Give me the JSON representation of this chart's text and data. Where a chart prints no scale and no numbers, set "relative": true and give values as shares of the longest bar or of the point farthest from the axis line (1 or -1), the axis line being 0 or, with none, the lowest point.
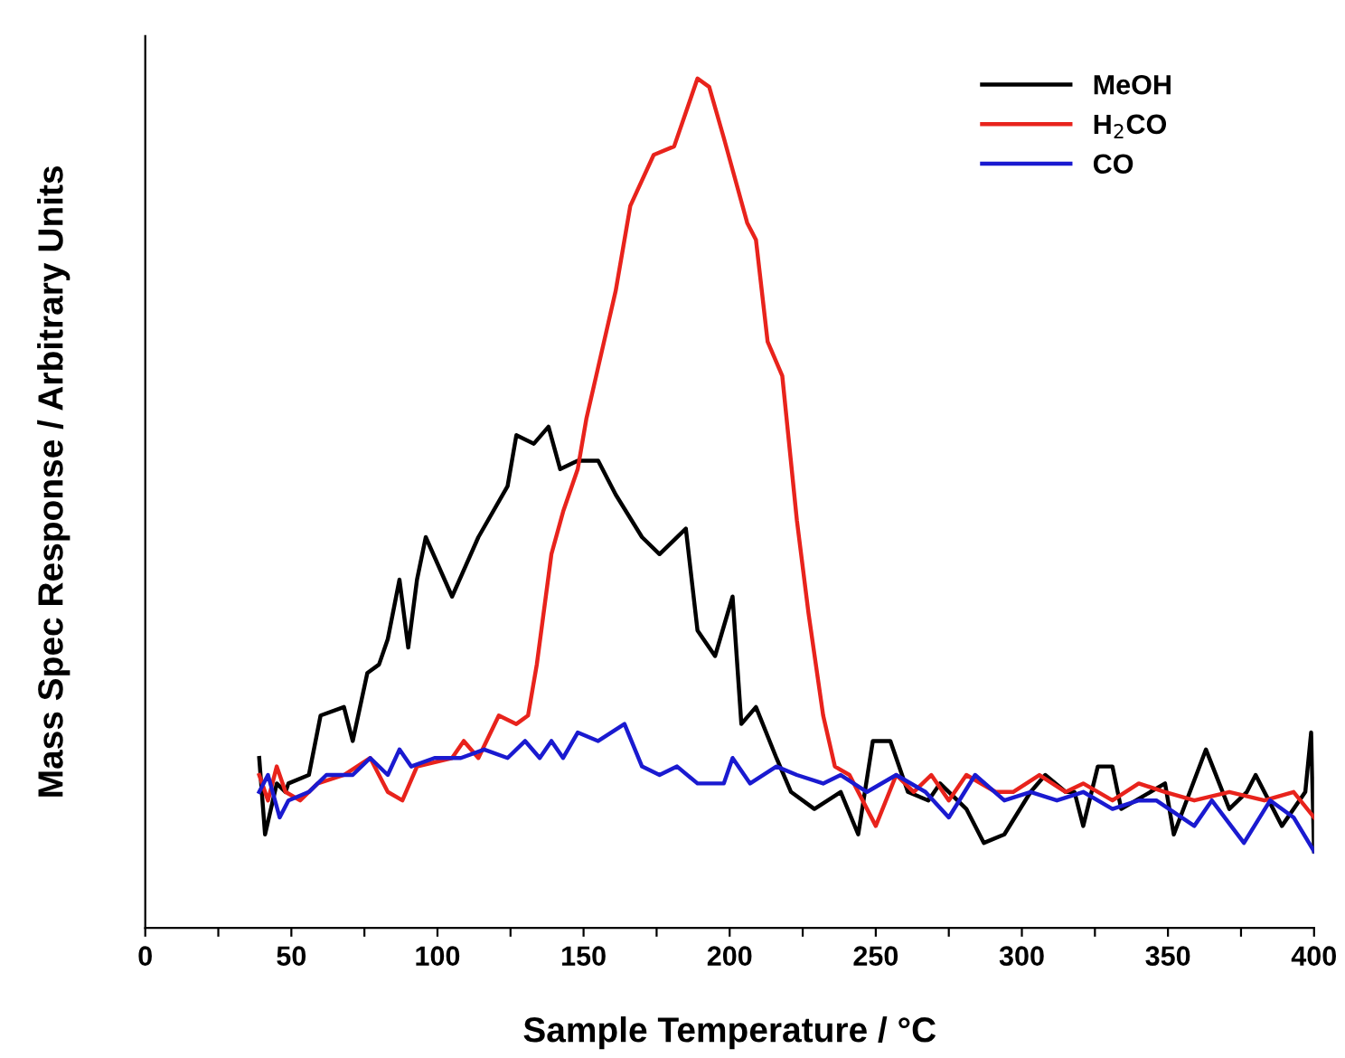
{
  "chart_data": {
    "type": "line",
    "relative": true,
    "xlabel": "Sample Temperature / °C",
    "ylabel": "Mass Spec Response / Arbitrary Units",
    "xlim": [
      0,
      400
    ],
    "xticks": [
      0,
      {
        "value": 25,
        "label": null
      },
      50,
      {
        "value": 75,
        "label": null
      },
      100,
      {
        "value": 125,
        "label": null
      },
      150,
      {
        "value": 175,
        "label": null
      },
      200,
      {
        "value": 225,
        "label": null
      },
      250,
      {
        "value": 275,
        "label": null
      },
      300,
      {
        "value": 325,
        "label": null
      },
      350,
      {
        "value": 375,
        "label": null
      },
      400
    ],
    "grid": false,
    "legend": "top right",
    "marker": "none",
    "line_style": "solid",
    "series": [
      {
        "name": "MeOH",
        "color": "#000000",
        "x": [
          39,
          41,
          45,
          48,
          49,
          56,
          60,
          68,
          71,
          76,
          80,
          83,
          87,
          90,
          93,
          96,
          105,
          114,
          124,
          127,
          133,
          138,
          142,
          148,
          155,
          161,
          170,
          176,
          185,
          189,
          195,
          201,
          204,
          209,
          216,
          221,
          229,
          238,
          244,
          249,
          255,
          261,
          268,
          272,
          281,
          287,
          294,
          303,
          308,
          315,
          318,
          321,
          326,
          331,
          334,
          349,
          352,
          363,
          371,
          377,
          380,
          389,
          397,
          399,
          400
        ],
        "values": [
          0.2,
          0.11,
          0.17,
          0.16,
          0.17,
          0.18,
          0.25,
          0.26,
          0.22,
          0.3,
          0.31,
          0.34,
          0.41,
          0.33,
          0.41,
          0.46,
          0.39,
          0.46,
          0.52,
          0.58,
          0.57,
          0.59,
          0.54,
          0.55,
          0.55,
          0.51,
          0.46,
          0.44,
          0.47,
          0.35,
          0.32,
          0.39,
          0.24,
          0.26,
          0.2,
          0.16,
          0.14,
          0.16,
          0.11,
          0.22,
          0.22,
          0.16,
          0.15,
          0.17,
          0.14,
          0.1,
          0.11,
          0.16,
          0.18,
          0.16,
          0.16,
          0.12,
          0.19,
          0.19,
          0.14,
          0.17,
          0.11,
          0.21,
          0.14,
          0.16,
          0.18,
          0.12,
          0.16,
          0.23,
          0.09
        ]
      },
      {
        "name": "H$_{2}$CO",
        "color": "#e8231c",
        "x": [
          39,
          42,
          45,
          48,
          53,
          59,
          68,
          77,
          83,
          88,
          93,
          105,
          109,
          114,
          121,
          127,
          131,
          134,
          139,
          143,
          148,
          151,
          155,
          161,
          166,
          174,
          181,
          189,
          193,
          198,
          206,
          209,
          213,
          218,
          223,
          227,
          232,
          236,
          241,
          250,
          257,
          263,
          269,
          275,
          281,
          291,
          297,
          306,
          315,
          321,
          331,
          340,
          349,
          359,
          371,
          383,
          393,
          400
        ],
        "values": [
          0.18,
          0.15,
          0.19,
          0.16,
          0.15,
          0.17,
          0.18,
          0.2,
          0.16,
          0.15,
          0.19,
          0.2,
          0.22,
          0.2,
          0.25,
          0.24,
          0.25,
          0.31,
          0.44,
          0.49,
          0.54,
          0.6,
          0.66,
          0.75,
          0.85,
          0.91,
          0.92,
          1.0,
          0.99,
          0.93,
          0.83,
          0.81,
          0.69,
          0.65,
          0.48,
          0.37,
          0.25,
          0.19,
          0.18,
          0.12,
          0.18,
          0.16,
          0.18,
          0.15,
          0.18,
          0.16,
          0.16,
          0.18,
          0.16,
          0.17,
          0.15,
          0.17,
          0.16,
          0.15,
          0.16,
          0.15,
          0.16,
          0.13
        ]
      },
      {
        "name": "CO",
        "color": "#1a1ad0",
        "x": [
          39,
          42,
          46,
          49,
          56,
          62,
          71,
          77,
          83,
          87,
          91,
          99,
          108,
          116,
          124,
          130,
          135,
          139,
          143,
          148,
          155,
          164,
          170,
          176,
          182,
          189,
          198,
          201,
          207,
          216,
          223,
          232,
          238,
          247,
          257,
          267,
          275,
          284,
          294,
          303,
          312,
          321,
          331,
          340,
          346,
          359,
          365,
          376,
          385,
          393,
          400
        ],
        "values": [
          0.16,
          0.18,
          0.13,
          0.15,
          0.16,
          0.18,
          0.18,
          0.2,
          0.18,
          0.21,
          0.19,
          0.2,
          0.2,
          0.21,
          0.2,
          0.22,
          0.2,
          0.22,
          0.2,
          0.23,
          0.22,
          0.24,
          0.19,
          0.18,
          0.19,
          0.17,
          0.17,
          0.2,
          0.17,
          0.19,
          0.18,
          0.17,
          0.18,
          0.16,
          0.18,
          0.16,
          0.13,
          0.18,
          0.15,
          0.16,
          0.15,
          0.16,
          0.14,
          0.15,
          0.15,
          0.12,
          0.15,
          0.1,
          0.15,
          0.13,
          0.09
        ]
      }
    ]
  }
}
